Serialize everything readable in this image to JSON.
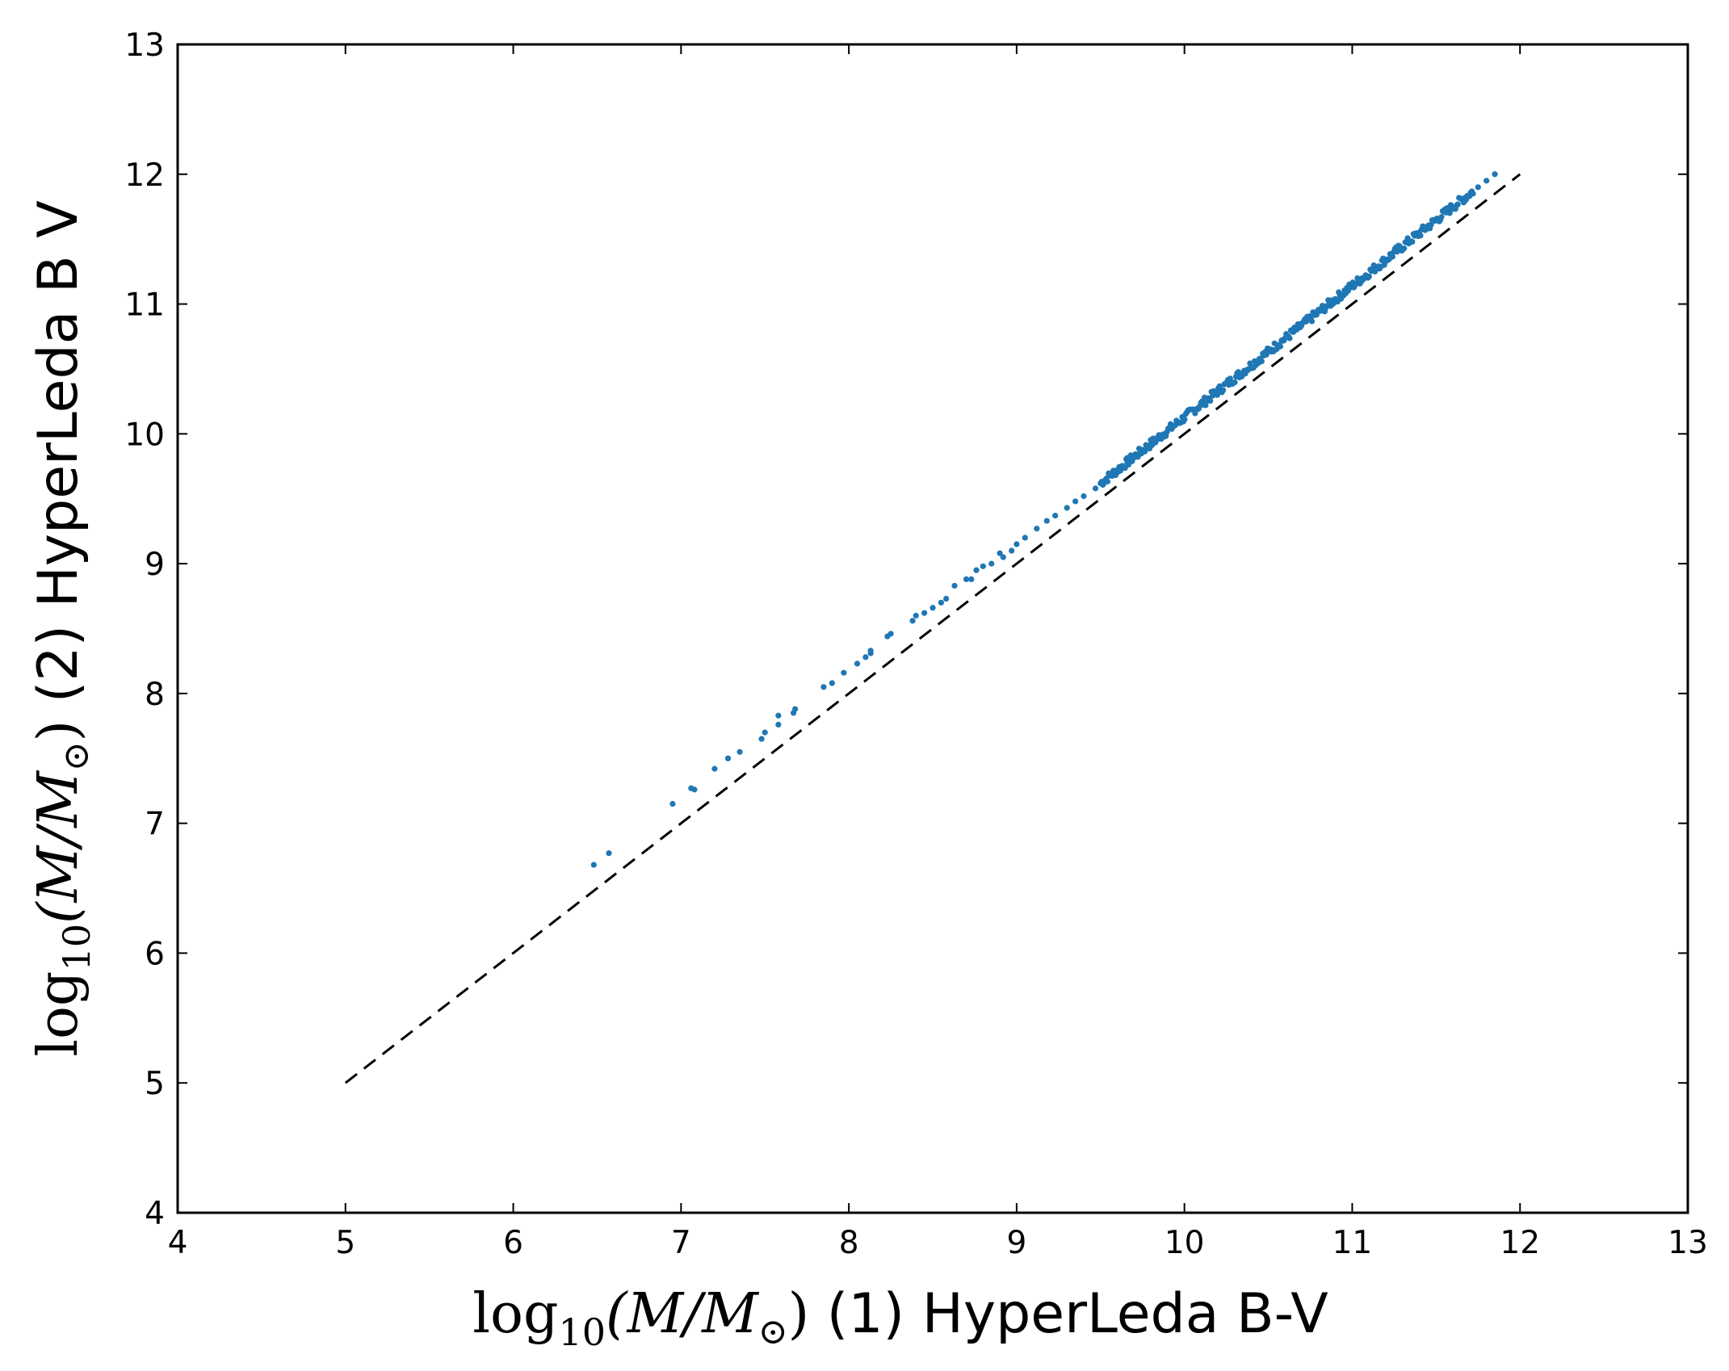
{
  "chart_data": {
    "type": "scatter",
    "title": "",
    "xlabel": {
      "prefix": "log",
      "subscript": "10",
      "math": "(M/M",
      "sun": "⊙",
      "close": ")",
      "suffix": " (1) HyperLeda B-V"
    },
    "ylabel": {
      "prefix": "log",
      "subscript": "10",
      "math": "(M/M",
      "sun": "⊙",
      "close": ")",
      "suffix": " (2) HyperLeda B V"
    },
    "xlim": [
      4,
      13
    ],
    "ylim": [
      4,
      13
    ],
    "xticks": [
      "4",
      "5",
      "6",
      "7",
      "8",
      "9",
      "10",
      "11",
      "12",
      "13"
    ],
    "yticks": [
      "4",
      "5",
      "6",
      "7",
      "8",
      "9",
      "10",
      "11",
      "12",
      "13"
    ],
    "grid": false,
    "series": [
      {
        "color": "#1f77b4",
        "marker": "dot",
        "points": [
          [
            6.48,
            6.68
          ],
          [
            6.57,
            6.77
          ],
          [
            6.95,
            7.15
          ],
          [
            7.06,
            7.27
          ],
          [
            7.08,
            7.26
          ],
          [
            7.2,
            7.42
          ],
          [
            7.28,
            7.5
          ],
          [
            7.35,
            7.55
          ],
          [
            7.48,
            7.65
          ],
          [
            7.5,
            7.7
          ],
          [
            7.58,
            7.83
          ],
          [
            7.58,
            7.76
          ],
          [
            7.67,
            7.85
          ],
          [
            7.68,
            7.88
          ],
          [
            7.85,
            8.05
          ],
          [
            7.9,
            8.08
          ],
          [
            7.97,
            8.16
          ],
          [
            8.05,
            8.23
          ],
          [
            8.1,
            8.28
          ],
          [
            8.13,
            8.31
          ],
          [
            8.13,
            8.33
          ],
          [
            8.23,
            8.44
          ],
          [
            8.25,
            8.46
          ],
          [
            8.38,
            8.56
          ],
          [
            8.4,
            8.6
          ],
          [
            8.45,
            8.62
          ],
          [
            8.5,
            8.66
          ],
          [
            8.55,
            8.7
          ],
          [
            8.58,
            8.73
          ],
          [
            8.63,
            8.83
          ],
          [
            8.7,
            8.88
          ],
          [
            8.73,
            8.88
          ],
          [
            8.76,
            8.95
          ],
          [
            8.8,
            8.98
          ],
          [
            8.85,
            9.0
          ],
          [
            8.9,
            9.08
          ],
          [
            8.92,
            9.05
          ],
          [
            8.97,
            9.1
          ],
          [
            9.0,
            9.15
          ],
          [
            9.05,
            9.2
          ],
          [
            9.12,
            9.27
          ],
          [
            9.18,
            9.33
          ],
          [
            9.23,
            9.37
          ],
          [
            9.3,
            9.43
          ],
          [
            9.35,
            9.48
          ],
          [
            9.4,
            9.52
          ],
          [
            9.47,
            9.58
          ],
          [
            9.52,
            9.62
          ],
          [
            9.55,
            9.68
          ],
          [
            9.6,
            9.72
          ],
          [
            9.66,
            9.78
          ],
          [
            9.7,
            9.82
          ],
          [
            9.75,
            9.87
          ],
          [
            9.8,
            9.92
          ],
          [
            9.84,
            9.97
          ]
        ],
        "band": {
          "x_start": 9.5,
          "x_end": 11.72,
          "count": 320,
          "offset_at_start": 0.12,
          "offset_at_end": 0.15,
          "spread": 0.035
        },
        "tail_points": [
          [
            11.75,
            11.9
          ],
          [
            11.8,
            11.95
          ],
          [
            11.85,
            12.0
          ]
        ]
      }
    ],
    "reference_line": {
      "style": "dashed",
      "color": "#000000",
      "from": [
        5,
        5
      ],
      "to": [
        12,
        12
      ]
    }
  }
}
